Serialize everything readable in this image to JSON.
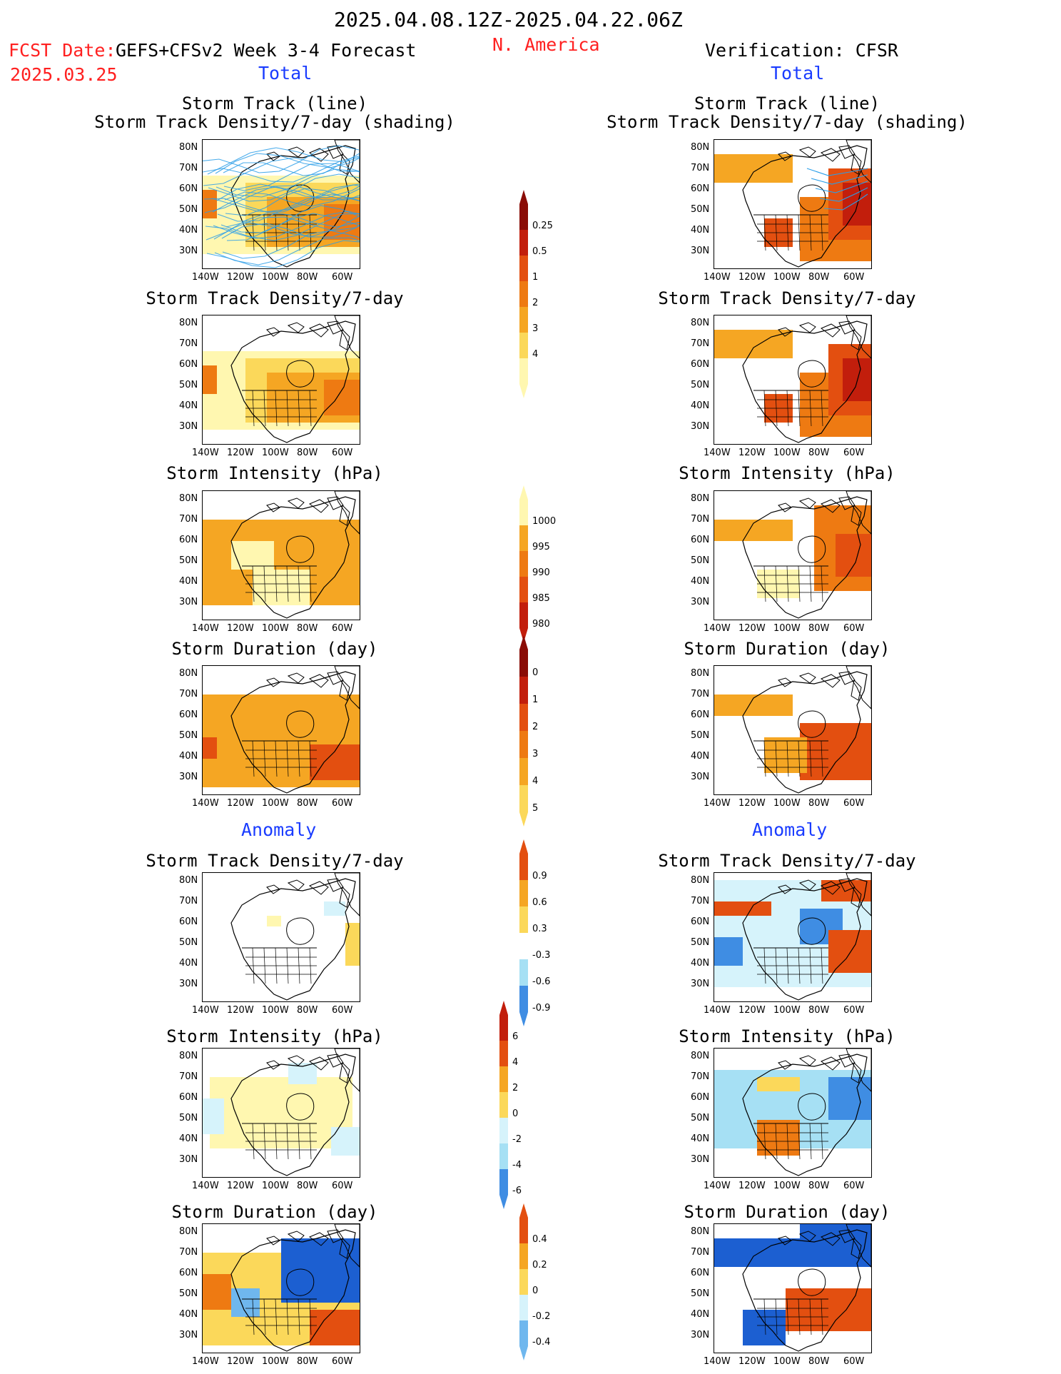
{
  "header": {
    "date_range": "2025.04.08.12Z-2025.04.22.06Z",
    "fcst_label": "FCST Date:",
    "fcst_model": "GEFS+CFSv2 Week 3-4 Forecast",
    "fcst_date": "2025.03.25",
    "region": "N. America",
    "verification": "Verification: CFSR"
  },
  "sections": {
    "total": "Total",
    "anomaly": "Anomaly"
  },
  "panel_titles": {
    "track_line": "Storm Track (line)",
    "track_shading": "Storm Track Density/7-day (shading)",
    "density": "Storm Track Density/7-day",
    "intensity": "Storm Intensity (hPa)",
    "duration": "Storm Duration (day)"
  },
  "axes": {
    "lat_labels": [
      "80N",
      "70N",
      "60N",
      "50N",
      "40N",
      "30N"
    ],
    "lon_labels": [
      "140W",
      "120W",
      "100W",
      "80W",
      "60W"
    ]
  },
  "colorbars": {
    "density_total": [
      "0.25",
      "0.5",
      "1",
      "2",
      "3",
      "4"
    ],
    "intensity_total": [
      "1000",
      "995",
      "990",
      "985",
      "980"
    ],
    "duration_total": [
      "0",
      "1",
      "2",
      "3",
      "4",
      "5"
    ],
    "density_anom": [
      "0.9",
      "0.6",
      "0.3",
      "-0.3",
      "-0.6",
      "-0.9"
    ],
    "intensity_anom": [
      "6",
      "4",
      "2",
      "0",
      "-2",
      "-4",
      "-6"
    ],
    "duration_anom": [
      "0.4",
      "0.2",
      "0",
      "-0.2",
      "-0.4"
    ]
  },
  "colors": {
    "warm": [
      "#fff7b0",
      "#fbd85a",
      "#f5a623",
      "#ee7a12",
      "#e34f10",
      "#c21e0c",
      "#8a0c06"
    ],
    "cool": [
      "#d6f3fb",
      "#a6e0f4",
      "#6fb7ee",
      "#3f8de3",
      "#1c5fd1"
    ],
    "track_line": "#2a9ee8",
    "title_blue": "#1a3cff",
    "title_red": "#ff2020"
  }
}
